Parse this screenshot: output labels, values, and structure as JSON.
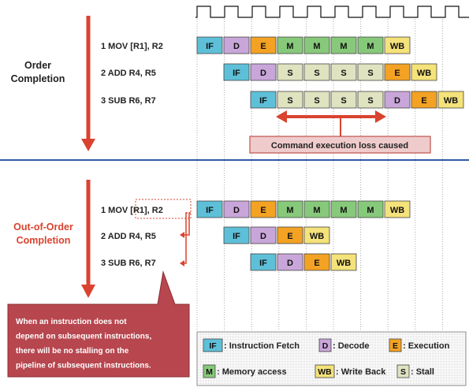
{
  "colors": {
    "IF": "#5ec0d8",
    "D": "#c9a6d9",
    "E": "#f3a223",
    "M": "#87c97a",
    "S": "#dfe3c0",
    "WB": "#f4e27a",
    "arrow": "#d9432f",
    "divider": "#2f5aa8",
    "callout_fill": "#b7464e",
    "loss_label_fill": "#efcccb"
  },
  "section1": {
    "title_line1": "Order",
    "title_line2": "Completion",
    "instructions": [
      {
        "label": "1 MOV [R1], R2",
        "stages": [
          "IF",
          "D",
          "E",
          "M",
          "M",
          "M",
          "M",
          "WB"
        ],
        "start": 0
      },
      {
        "label": "2 ADD R4, R5",
        "stages": [
          "IF",
          "D",
          "S",
          "S",
          "S",
          "S",
          "E",
          "WB"
        ],
        "start": 1
      },
      {
        "label": "3 SUB R6, R7",
        "stages": [
          "IF",
          "S",
          "S",
          "S",
          "S",
          "D",
          "E",
          "WB"
        ],
        "start": 2
      }
    ],
    "loss_label": "Command execution loss caused"
  },
  "section2": {
    "title_line1": "Out-of-Order",
    "title_line2": "Completion",
    "instructions": [
      {
        "label": "1 MOV [R1], R2",
        "stages": [
          "IF",
          "D",
          "E",
          "M",
          "M",
          "M",
          "M",
          "WB"
        ],
        "start": 0
      },
      {
        "label": "2 ADD R4, R5",
        "stages": [
          "IF",
          "D",
          "E",
          "WB"
        ],
        "start": 1
      },
      {
        "label": "3 SUB R6, R7",
        "stages": [
          "IF",
          "D",
          "E",
          "WB"
        ],
        "start": 2
      }
    ],
    "callout_lines": [
      "When an instruction does not",
      "depend on subsequent instructions,",
      "there will be no stalling on the",
      "pipeline of subsequent instructions."
    ]
  },
  "legend": [
    {
      "key": "IF",
      "text": ": Instruction Fetch"
    },
    {
      "key": "D",
      "text": ": Decode"
    },
    {
      "key": "E",
      "text": ": Execution"
    },
    {
      "key": "M",
      "text": ": Memory access"
    },
    {
      "key": "WB",
      "text": ": Write Back"
    },
    {
      "key": "S",
      "text": ": Stall"
    }
  ]
}
